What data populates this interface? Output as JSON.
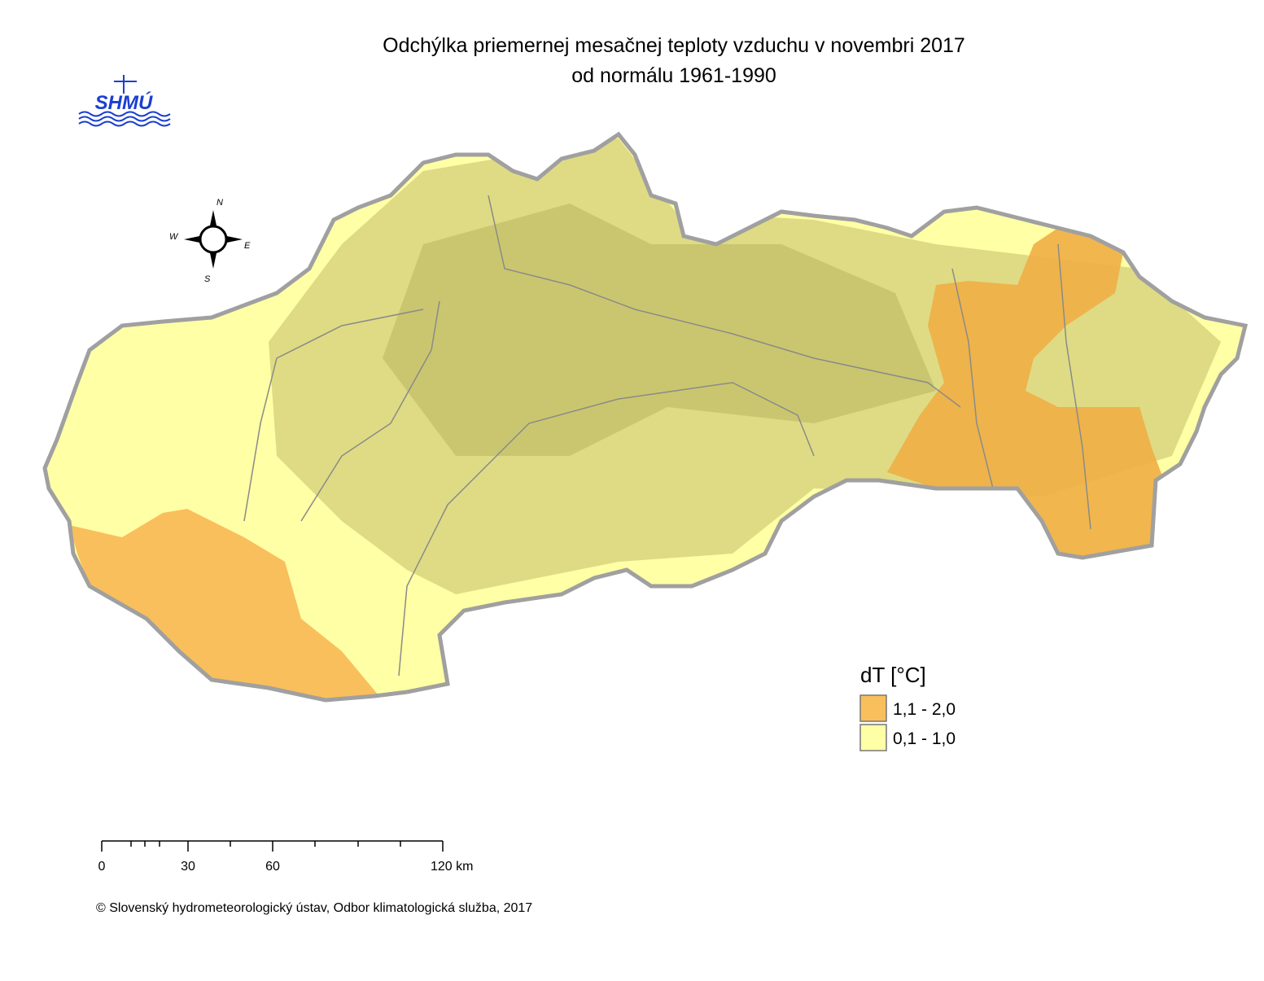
{
  "header": {
    "title_line1": "Odchýlka priemernej mesačnej teploty vzduchu v novembri 2017",
    "title_line2": "od normálu 1961-1990"
  },
  "logo": {
    "text": "SHMÚ"
  },
  "compass": {
    "north": "N",
    "east": "E",
    "south": "S",
    "west": "W"
  },
  "legend": {
    "title": "dT [°C]",
    "items": [
      {
        "label": "1,1 - 2,0",
        "color": "#f9bf5c"
      },
      {
        "label": "0,1 - 1,0",
        "color": "#ffffa6"
      }
    ]
  },
  "scale_bar": {
    "labels": [
      "0",
      "30",
      "60",
      "120 km"
    ]
  },
  "footer": {
    "copyright": "© Slovenský hydrometeorologický ústav, Odbor klimatologická služba, 2017"
  }
}
